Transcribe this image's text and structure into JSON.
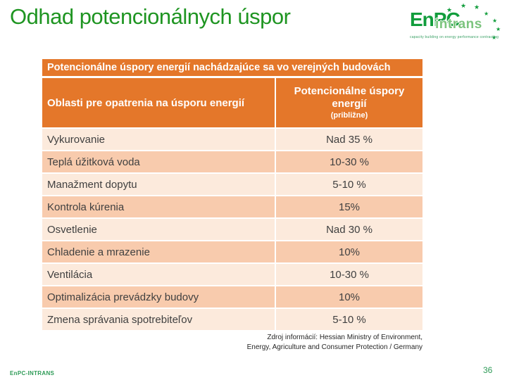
{
  "slide": {
    "title": "Odhad potencionálnych úspor",
    "footer_left": "EnPC-INTRANS",
    "page_number": "36"
  },
  "logo": {
    "text_main": "EnPC",
    "text_overlay": "intrans",
    "tagline": "capacity building on energy performance contracting",
    "star": "★"
  },
  "table": {
    "title": "Potencionálne úspory energií nachádzajúce sa vo verejných budovách",
    "col1_header": "Oblasti pre opatrenia na úsporu energií",
    "col2_header": "Potencionálne úspory energií",
    "col2_subheader": "(približne)",
    "rows": [
      {
        "area": "Vykurovanie",
        "savings": "Nad 35 %"
      },
      {
        "area": "Teplá úžitková voda",
        "savings": "10-30 %"
      },
      {
        "area": "Manažment dopytu",
        "savings": "5-10 %"
      },
      {
        "area": "Kontrola kúrenia",
        "savings": "15%"
      },
      {
        "area": "Osvetlenie",
        "savings": "Nad 30 %"
      },
      {
        "area": "Chladenie a mrazenie",
        "savings": "10%"
      },
      {
        "area": "Ventilácia",
        "savings": "10-30 %"
      },
      {
        "area": "Optimalizácia prevádzky budovy",
        "savings": "10%"
      },
      {
        "area": "Zmena správania spotrebiteľov",
        "savings": "5-10 %"
      }
    ]
  },
  "source": {
    "line1": "Zdroj informácií: Hessian Ministry of Environment,",
    "line2": "Energy, Agriculture and Consumer Protection / Germany"
  },
  "colors": {
    "title_green": "#1F9522",
    "brand_green": "#119D3C",
    "footer_green": "#2E9B57",
    "header_orange": "#E4772A",
    "row_light": "#FCEADC",
    "row_dark": "#F8CBAD",
    "text_dark": "#404040"
  }
}
